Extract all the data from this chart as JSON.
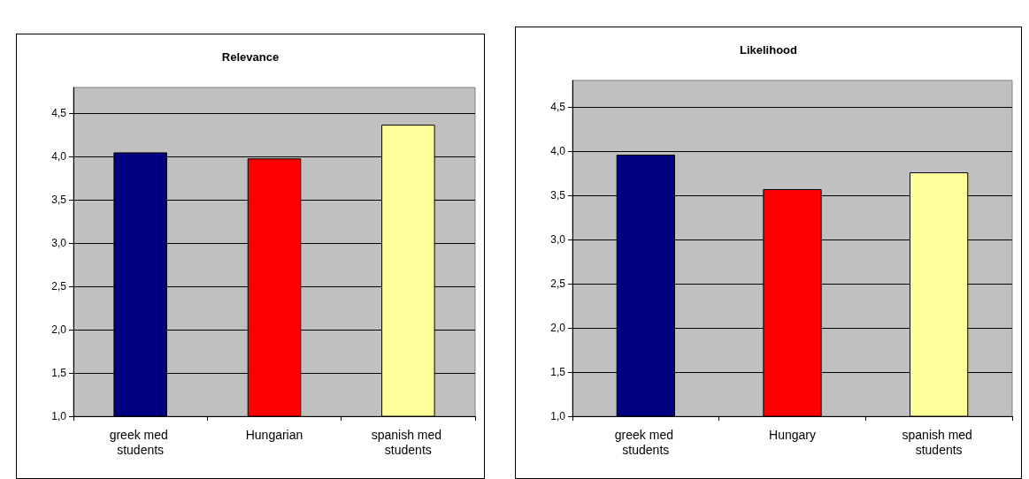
{
  "chart_data": [
    {
      "type": "bar",
      "title": "Relevance",
      "categories": [
        "greek med students",
        "Hungarian",
        "spanish med students"
      ],
      "values": [
        4.05,
        3.98,
        4.37
      ],
      "colors": [
        "#000080",
        "#ff0000",
        "#ffff99"
      ],
      "ylim": [
        1,
        4.8
      ],
      "yticks": [
        {
          "value": 1,
          "label": "1,0"
        },
        {
          "value": 1.5,
          "label": "1,5"
        },
        {
          "value": 2,
          "label": "2,0"
        },
        {
          "value": 2.5,
          "label": "2,5"
        },
        {
          "value": 3,
          "label": "3,0"
        },
        {
          "value": 3.5,
          "label": "3,5"
        },
        {
          "value": 4,
          "label": "4,0"
        },
        {
          "value": 4.5,
          "label": "4,5"
        }
      ],
      "grid": "y"
    },
    {
      "type": "bar",
      "title": "Likelihood",
      "categories": [
        "greek med students",
        "Hungary",
        "spanish med students"
      ],
      "values": [
        3.96,
        3.57,
        3.76
      ],
      "colors": [
        "#000080",
        "#ff0000",
        "#ffff99"
      ],
      "ylim": [
        1,
        4.8
      ],
      "yticks": [
        {
          "value": 1,
          "label": "1,0"
        },
        {
          "value": 1.5,
          "label": "1,5"
        },
        {
          "value": 2,
          "label": "2,0"
        },
        {
          "value": 2.5,
          "label": "2,5"
        },
        {
          "value": 3,
          "label": "3,0"
        },
        {
          "value": 3.5,
          "label": "3,5"
        },
        {
          "value": 4,
          "label": "4,0"
        },
        {
          "value": 4.5,
          "label": "4,5"
        }
      ],
      "grid": "y"
    }
  ]
}
